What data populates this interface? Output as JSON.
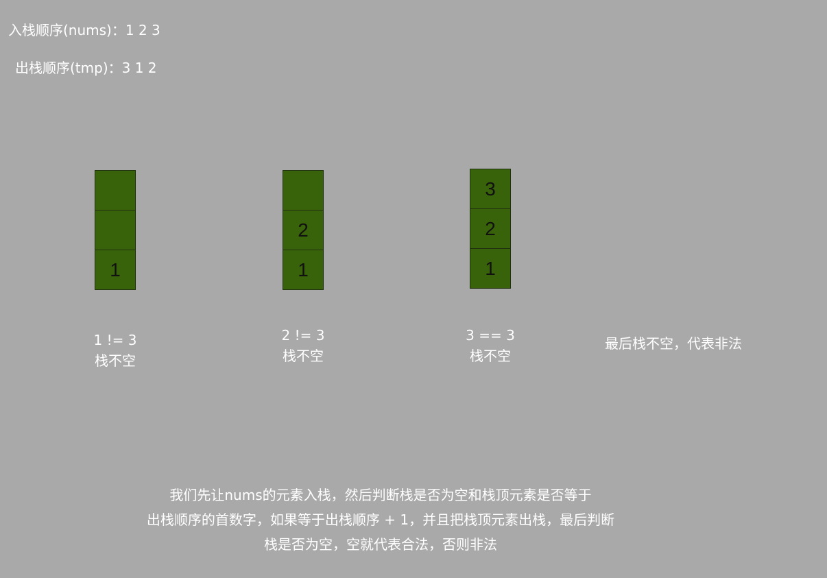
{
  "push_order": "入栈顺序(nums)：1 2 3",
  "pop_order": "出栈顺序(tmp)：3 1 2",
  "stacks": [
    {
      "cells": [
        "",
        "",
        "1"
      ],
      "condition": "1 != 3",
      "status": "栈不空"
    },
    {
      "cells": [
        "",
        "2",
        "1"
      ],
      "condition": "2 != 3",
      "status": "栈不空"
    },
    {
      "cells": [
        "3",
        "2",
        "1"
      ],
      "condition": "3 == 3",
      "status": "栈不空"
    }
  ],
  "final_note": "最后栈不空，代表非法",
  "explanation": [
    "我们先让nums的元素入栈，然后判断栈是否为空和栈顶元素是否等于",
    "出栈顺序的首数字，如果等于出栈顺序 + 1，并且把栈顶元素出栈，最后判断",
    "栈是否为空，空就代表合法，否则非法"
  ],
  "colors": {
    "background": "#a9a9a9",
    "stack_cell": "#38630a",
    "text": "#ffffff",
    "cell_text": "#111111"
  }
}
